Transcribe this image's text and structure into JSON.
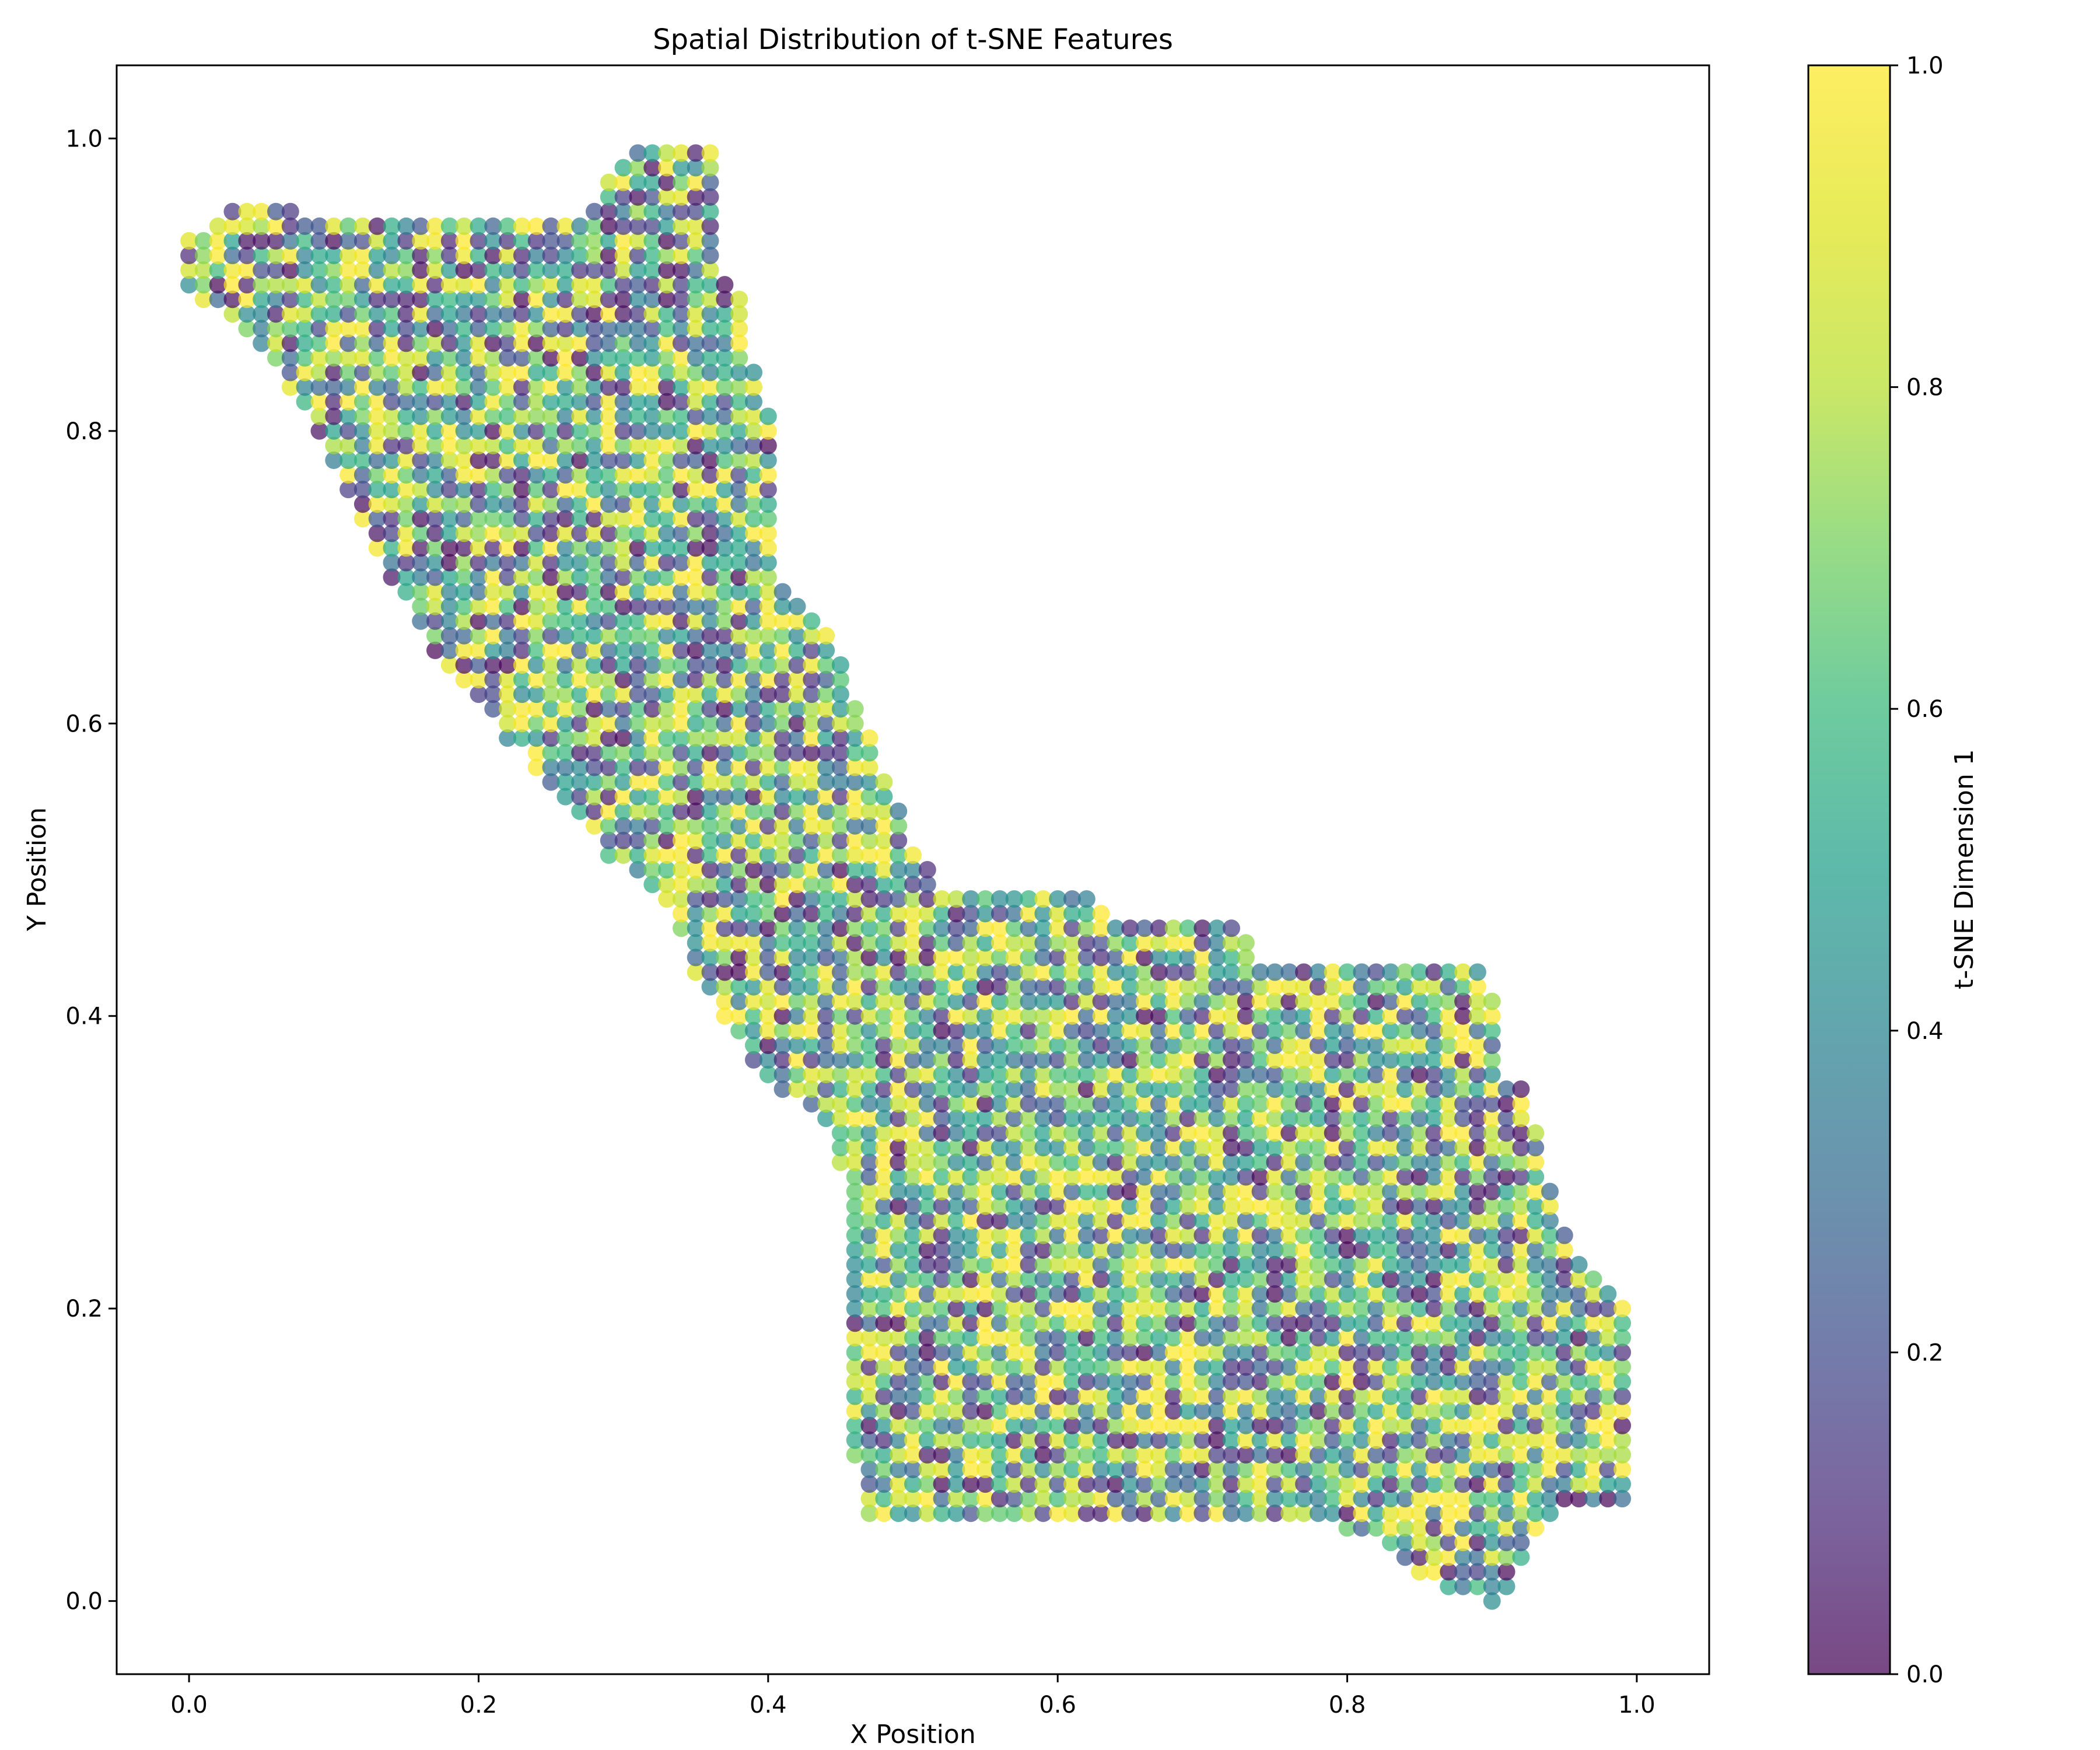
{
  "chart_data": {
    "type": "scatter",
    "title": "Spatial Distribution of t-SNE Features",
    "xlabel": "X Position",
    "ylabel": "Y Position",
    "xlim": [
      -0.05,
      1.05
    ],
    "ylim": [
      -0.05,
      1.05
    ],
    "x_ticks": [
      0.0,
      0.2,
      0.4,
      0.6,
      0.8,
      1.0
    ],
    "y_ticks": [
      0.0,
      0.2,
      0.4,
      0.6,
      0.8,
      1.0
    ],
    "x_tick_labels": [
      "0.0",
      "0.2",
      "0.4",
      "0.6",
      "0.8",
      "1.0"
    ],
    "y_tick_labels": [
      "0.0",
      "0.2",
      "0.4",
      "0.6",
      "0.8",
      "1.0"
    ],
    "grid": false,
    "legend": "none",
    "colormap": "viridis",
    "marker_alpha": 0.7,
    "point_grid_spacing": 0.01,
    "colorbar": {
      "label": "t-SNE Dimension 1",
      "range": [
        0.0,
        1.0
      ],
      "ticks": [
        0.0,
        0.2,
        0.4,
        0.6,
        0.8,
        1.0
      ],
      "tick_labels": [
        "0.0",
        "0.2",
        "0.4",
        "0.6",
        "0.8",
        "1.0"
      ]
    },
    "region_outline": [
      [
        0.0,
        0.93
      ],
      [
        0.025,
        0.955
      ],
      [
        0.075,
        0.955
      ],
      [
        0.08,
        0.945
      ],
      [
        0.255,
        0.945
      ],
      [
        0.29,
        0.955
      ],
      [
        0.29,
        0.975
      ],
      [
        0.31,
        1.0
      ],
      [
        0.36,
        1.0
      ],
      [
        0.37,
        0.975
      ],
      [
        0.37,
        0.91
      ],
      [
        0.385,
        0.89
      ],
      [
        0.39,
        0.845
      ],
      [
        0.4,
        0.82
      ],
      [
        0.405,
        0.75
      ],
      [
        0.41,
        0.7
      ],
      [
        0.43,
        0.68
      ],
      [
        0.445,
        0.66
      ],
      [
        0.455,
        0.625
      ],
      [
        0.47,
        0.6
      ],
      [
        0.485,
        0.555
      ],
      [
        0.5,
        0.52
      ],
      [
        0.52,
        0.49
      ],
      [
        0.62,
        0.49
      ],
      [
        0.64,
        0.47
      ],
      [
        0.725,
        0.47
      ],
      [
        0.74,
        0.44
      ],
      [
        0.885,
        0.44
      ],
      [
        0.905,
        0.41
      ],
      [
        0.905,
        0.36
      ],
      [
        0.925,
        0.35
      ],
      [
        0.935,
        0.3
      ],
      [
        0.945,
        0.27
      ],
      [
        0.965,
        0.23
      ],
      [
        1.0,
        0.19
      ],
      [
        1.0,
        0.07
      ],
      [
        0.98,
        0.06
      ],
      [
        0.95,
        0.07
      ],
      [
        0.925,
        0.035
      ],
      [
        0.91,
        0.0
      ],
      [
        0.895,
        0.0
      ],
      [
        0.855,
        0.015
      ],
      [
        0.83,
        0.04
      ],
      [
        0.8,
        0.05
      ],
      [
        0.77,
        0.06
      ],
      [
        0.465,
        0.06
      ],
      [
        0.46,
        0.1
      ],
      [
        0.45,
        0.3
      ],
      [
        0.44,
        0.33
      ],
      [
        0.41,
        0.35
      ],
      [
        0.39,
        0.37
      ],
      [
        0.35,
        0.43
      ],
      [
        0.33,
        0.48
      ],
      [
        0.29,
        0.51
      ],
      [
        0.25,
        0.56
      ],
      [
        0.22,
        0.59
      ],
      [
        0.17,
        0.65
      ],
      [
        0.14,
        0.7
      ],
      [
        0.12,
        0.74
      ],
      [
        0.07,
        0.83
      ],
      [
        0.04,
        0.87
      ],
      [
        0.0,
        0.895
      ]
    ]
  }
}
